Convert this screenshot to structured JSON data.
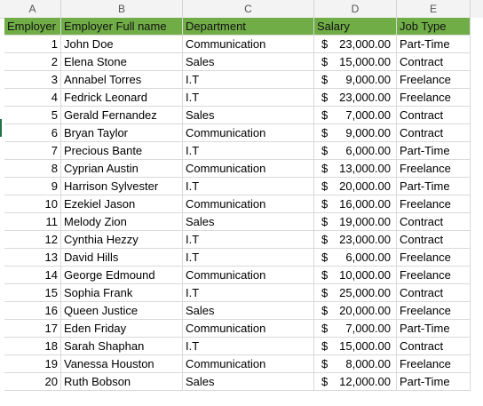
{
  "columns": [
    "A",
    "B",
    "C",
    "D",
    "E"
  ],
  "header": {
    "employer": "Employer",
    "full_name": "Employer Full name",
    "department": "Department",
    "salary": "Salary",
    "job_type": "Job Type"
  },
  "currency_symbol": "$",
  "rows": [
    {
      "id": "1",
      "name": "John Doe",
      "dept": "Communication",
      "salary": "23,000.00",
      "type": "Part-Time"
    },
    {
      "id": "2",
      "name": "Elena Stone",
      "dept": "Sales",
      "salary": "15,000.00",
      "type": "Contract"
    },
    {
      "id": "3",
      "name": "Annabel Torres",
      "dept": "I.T",
      "salary": "9,000.00",
      "type": "Freelance"
    },
    {
      "id": "4",
      "name": "Fedrick Leonard",
      "dept": "I.T",
      "salary": "23,000.00",
      "type": "Freelance"
    },
    {
      "id": "5",
      "name": "Gerald Fernandez",
      "dept": "Sales",
      "salary": "7,000.00",
      "type": "Contract"
    },
    {
      "id": "6",
      "name": "Bryan Taylor",
      "dept": "Communication",
      "salary": "9,000.00",
      "type": "Contract"
    },
    {
      "id": "7",
      "name": "Precious Bante",
      "dept": "I.T",
      "salary": "6,000.00",
      "type": "Part-Time"
    },
    {
      "id": "8",
      "name": "Cyprian Austin",
      "dept": "Communication",
      "salary": "13,000.00",
      "type": "Freelance"
    },
    {
      "id": "9",
      "name": "Harrison Sylvester",
      "dept": "I.T",
      "salary": "20,000.00",
      "type": "Part-Time"
    },
    {
      "id": "10",
      "name": "Ezekiel  Jason",
      "dept": "Communication",
      "salary": "16,000.00",
      "type": "Freelance"
    },
    {
      "id": "11",
      "name": "Melody Zion",
      "dept": "Sales",
      "salary": "19,000.00",
      "type": "Contract"
    },
    {
      "id": "12",
      "name": "Cynthia Hezzy",
      "dept": "I.T",
      "salary": "23,000.00",
      "type": "Contract"
    },
    {
      "id": "13",
      "name": "David Hills",
      "dept": "I.T",
      "salary": "6,000.00",
      "type": "Freelance"
    },
    {
      "id": "14",
      "name": "George Edmound",
      "dept": "Communication",
      "salary": "10,000.00",
      "type": "Freelance"
    },
    {
      "id": "15",
      "name": "Sophia Frank",
      "dept": "I.T",
      "salary": "25,000.00",
      "type": "Contract"
    },
    {
      "id": "16",
      "name": "Queen Justice",
      "dept": "Sales",
      "salary": "20,000.00",
      "type": "Freelance"
    },
    {
      "id": "17",
      "name": "Eden Friday",
      "dept": "Communication",
      "salary": "7,000.00",
      "type": "Part-Time"
    },
    {
      "id": "18",
      "name": "Sarah Shaphan",
      "dept": "I.T",
      "salary": "15,000.00",
      "type": "Contract"
    },
    {
      "id": "19",
      "name": "Vanessa Houston",
      "dept": "Communication",
      "salary": "8,000.00",
      "type": "Freelance"
    },
    {
      "id": "20",
      "name": "Ruth Bobson",
      "dept": "Sales",
      "salary": "12,000.00",
      "type": "Part-Time"
    }
  ],
  "colors": {
    "header_fill": "#70ad47",
    "gridline": "#d9d9d9",
    "column_header_bg": "#f3f3f3"
  }
}
